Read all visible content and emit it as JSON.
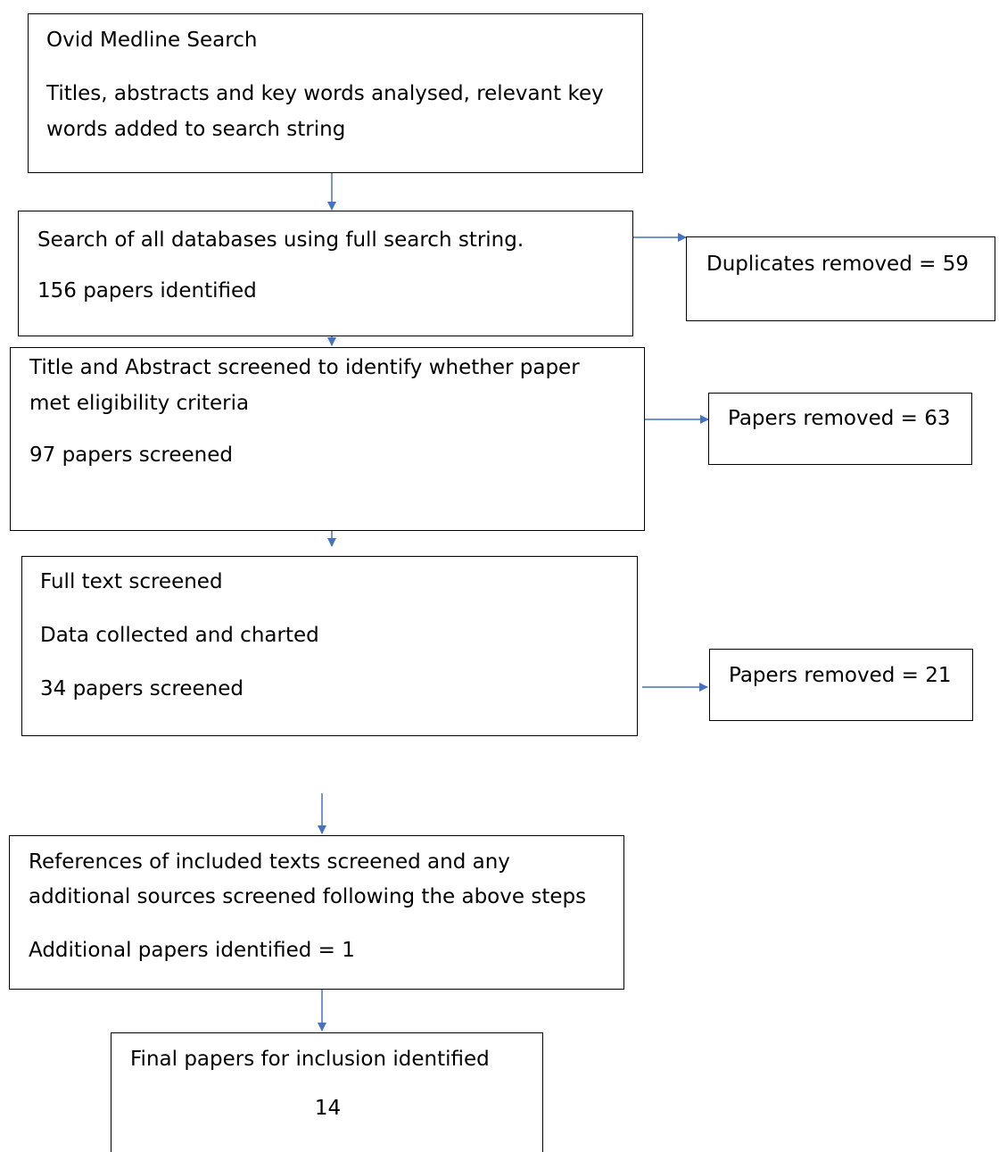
{
  "diagram": {
    "arrow_color": "#4472c4",
    "boxes": {
      "ovid": {
        "lines": [
          "Ovid Medline Search",
          "Titles, abstracts and key words analysed, relevant key",
          "words added to search string"
        ]
      },
      "databases": {
        "lines": [
          "Search of all databases using full search string.",
          "156 papers identified"
        ]
      },
      "duplicates": {
        "lines": [
          "Duplicates removed = 59"
        ]
      },
      "title_abstract": {
        "lines": [
          "Title and Abstract screened to identify whether paper",
          "met eligibility criteria",
          "97 papers screened"
        ]
      },
      "removed_63": {
        "lines": [
          "Papers removed = 63"
        ]
      },
      "full_text": {
        "lines": [
          "Full text screened",
          "Data collected and charted",
          "34 papers screened"
        ]
      },
      "removed_21": {
        "lines": [
          "Papers removed = 21"
        ]
      },
      "references": {
        "lines": [
          "References of included texts screened and any",
          "additional sources screened following the above steps",
          "Additional papers identified = 1"
        ]
      },
      "final": {
        "lines": [
          "Final papers for inclusion identified",
          "14"
        ]
      }
    }
  }
}
